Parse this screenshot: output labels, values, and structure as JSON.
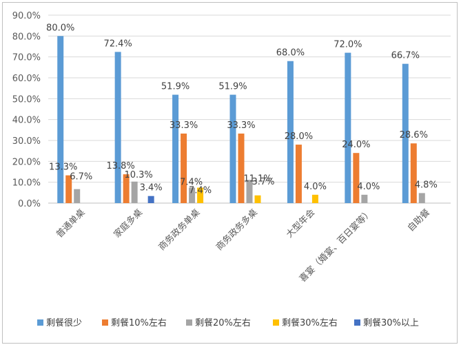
{
  "chart_data": {
    "type": "bar",
    "categories": [
      "普通单桌",
      "家庭多桌",
      "商务政务单桌",
      "商务政务多桌",
      "大型年会",
      "喜宴（婚宴、百日宴等）",
      "自助餐"
    ],
    "series": [
      {
        "name": "剩餐很少",
        "color": "#5b9bd5",
        "values": [
          80.0,
          72.4,
          51.9,
          51.9,
          68.0,
          72.0,
          66.7
        ],
        "labels": [
          "80.0%",
          "72.4%",
          "51.9%",
          "51.9%",
          "68.0%",
          "72.0%",
          "66.7%"
        ]
      },
      {
        "name": "剩餐10%左右",
        "color": "#ed7d31",
        "values": [
          13.3,
          13.8,
          33.3,
          33.3,
          28.0,
          24.0,
          28.6
        ],
        "labels": [
          "13.3%",
          "13.8%",
          "33.3%",
          "33.3%",
          "28.0%",
          "24.0%",
          "28.6%"
        ]
      },
      {
        "name": "剩餐20%左右",
        "color": "#a5a5a5",
        "values": [
          6.7,
          10.3,
          7.4,
          11.1,
          null,
          4.0,
          4.8
        ],
        "labels": [
          "6.7%",
          "10.3%",
          "7.4%",
          "11.1%",
          null,
          "4.0%",
          "4.8%"
        ]
      },
      {
        "name": "剩餐30%左右",
        "color": "#ffc000",
        "values": [
          null,
          null,
          7.4,
          3.7,
          4.0,
          null,
          null
        ],
        "labels": [
          null,
          null,
          "7.4%",
          "3.7%",
          "4.0%",
          null,
          null
        ]
      },
      {
        "name": "剩餐30%以上",
        "color": "#4472c4",
        "values": [
          null,
          3.4,
          null,
          null,
          null,
          null,
          null
        ],
        "labels": [
          null,
          "3.4%",
          null,
          null,
          null,
          null,
          null
        ]
      }
    ],
    "yticks": [
      "0.0%",
      "10.0%",
      "20.0%",
      "30.0%",
      "40.0%",
      "50.0%",
      "60.0%",
      "70.0%",
      "80.0%",
      "90.0%"
    ],
    "ylim": [
      0,
      90
    ],
    "grid": true,
    "legend_position": "bottom"
  }
}
